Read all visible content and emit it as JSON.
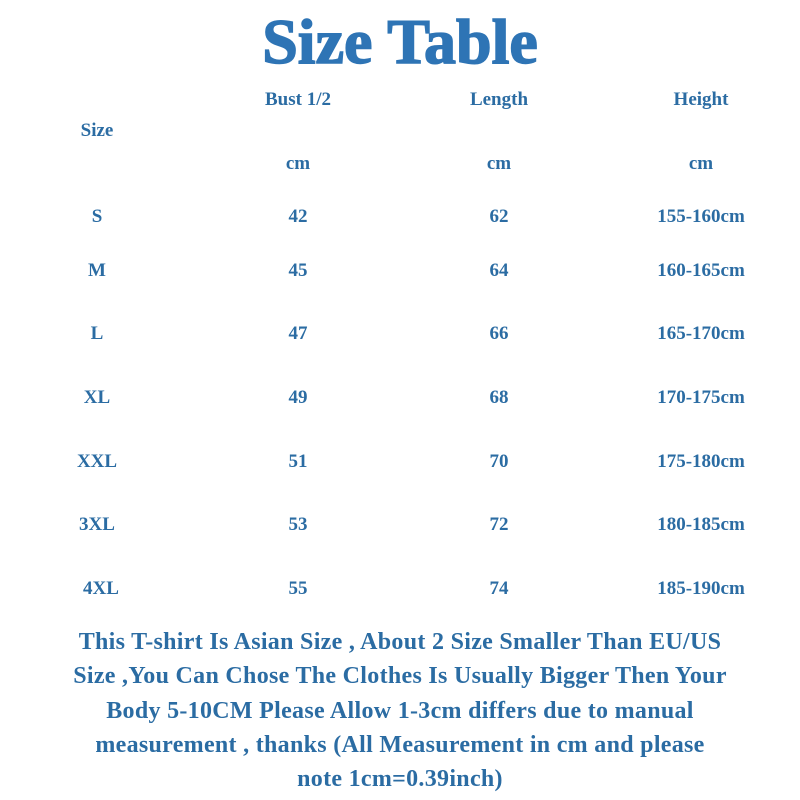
{
  "title": "Size Table",
  "table": {
    "size_header": "Size",
    "columns": [
      {
        "label": "Bust 1/2",
        "unit": "cm"
      },
      {
        "label": "Length",
        "unit": "cm"
      },
      {
        "label": "Height",
        "unit": "cm"
      }
    ],
    "rows": [
      {
        "size": "S",
        "bust": "42",
        "length": "62",
        "height": "155-160cm"
      },
      {
        "size": "M",
        "bust": "45",
        "length": "64",
        "height": "160-165cm"
      },
      {
        "size": "L",
        "bust": "47",
        "length": "66",
        "height": "165-170cm"
      },
      {
        "size": "XL",
        "bust": "49",
        "length": "68",
        "height": "170-175cm"
      },
      {
        "size": "XXL",
        "bust": "51",
        "length": "70",
        "height": "175-180cm"
      },
      {
        "size": "3XL",
        "bust": "53",
        "length": "72",
        "height": "180-185cm"
      },
      {
        "size": "4XL",
        "bust": "55",
        "length": "74",
        "height": "185-190cm"
      }
    ]
  },
  "note_lines": [
    "This T-shirt Is Asian Size , About 2 Size Smaller Than EU/US",
    "Size ,You Can Chose The Clothes Is Usually Bigger Then Your",
    "Body 5-10CM Please Allow 1-3cm differs due to manual",
    "measurement , thanks (All Measurement in cm and please",
    "note 1cm=0.39inch)"
  ],
  "colors": {
    "title": "#2e74b5",
    "text": "#2b6ca3",
    "background": "#ffffff"
  }
}
